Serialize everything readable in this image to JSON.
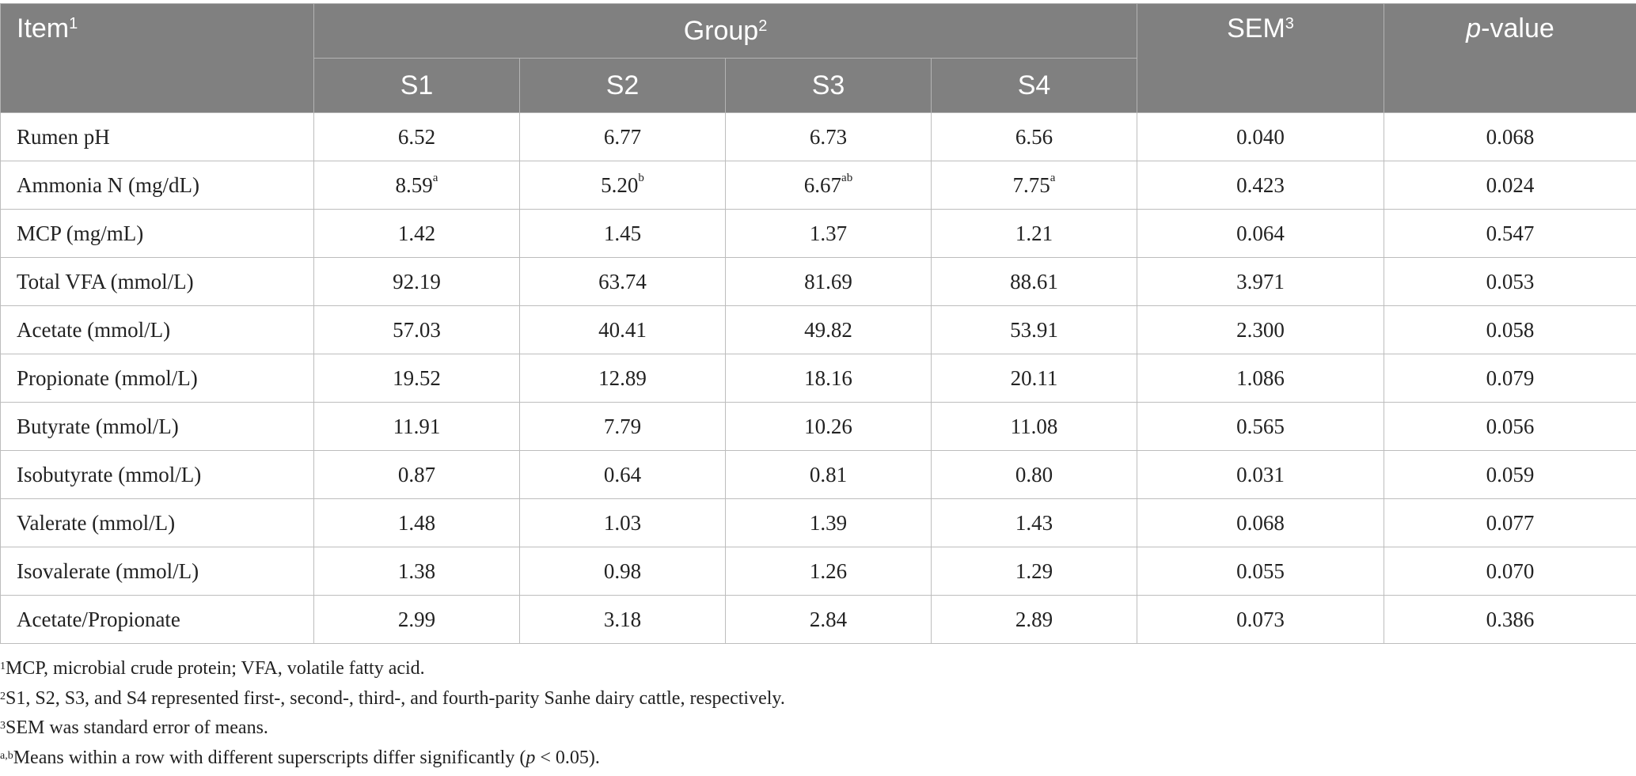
{
  "header": {
    "item": "Item",
    "item_sup": "1",
    "group": "Group",
    "group_sup": "2",
    "sem": "SEM",
    "sem_sup": "3",
    "p_italic": "p",
    "p_rest": "-value",
    "subgroups": [
      "S1",
      "S2",
      "S3",
      "S4"
    ]
  },
  "rows": [
    {
      "item": "Rumen pH",
      "s1": "6.52",
      "s1_sup": "",
      "s2": "6.77",
      "s2_sup": "",
      "s3": "6.73",
      "s3_sup": "",
      "s4": "6.56",
      "s4_sup": "",
      "sem": "0.040",
      "p": "0.068"
    },
    {
      "item": "Ammonia N (mg/dL)",
      "s1": "8.59",
      "s1_sup": "a",
      "s2": "5.20",
      "s2_sup": "b",
      "s3": "6.67",
      "s3_sup": "ab",
      "s4": "7.75",
      "s4_sup": "a",
      "sem": "0.423",
      "p": "0.024"
    },
    {
      "item": "MCP (mg/mL)",
      "s1": "1.42",
      "s1_sup": "",
      "s2": "1.45",
      "s2_sup": "",
      "s3": "1.37",
      "s3_sup": "",
      "s4": "1.21",
      "s4_sup": "",
      "sem": "0.064",
      "p": "0.547"
    },
    {
      "item": "Total VFA (mmol/L)",
      "s1": "92.19",
      "s1_sup": "",
      "s2": "63.74",
      "s2_sup": "",
      "s3": "81.69",
      "s3_sup": "",
      "s4": "88.61",
      "s4_sup": "",
      "sem": "3.971",
      "p": "0.053"
    },
    {
      "item": "Acetate (mmol/L)",
      "s1": "57.03",
      "s1_sup": "",
      "s2": "40.41",
      "s2_sup": "",
      "s3": "49.82",
      "s3_sup": "",
      "s4": "53.91",
      "s4_sup": "",
      "sem": "2.300",
      "p": "0.058"
    },
    {
      "item": "Propionate (mmol/L)",
      "s1": "19.52",
      "s1_sup": "",
      "s2": "12.89",
      "s2_sup": "",
      "s3": "18.16",
      "s3_sup": "",
      "s4": "20.11",
      "s4_sup": "",
      "sem": "1.086",
      "p": "0.079"
    },
    {
      "item": "Butyrate (mmol/L)",
      "s1": "11.91",
      "s1_sup": "",
      "s2": "7.79",
      "s2_sup": "",
      "s3": "10.26",
      "s3_sup": "",
      "s4": "11.08",
      "s4_sup": "",
      "sem": "0.565",
      "p": "0.056"
    },
    {
      "item": "Isobutyrate (mmol/L)",
      "s1": "0.87",
      "s1_sup": "",
      "s2": "0.64",
      "s2_sup": "",
      "s3": "0.81",
      "s3_sup": "",
      "s4": "0.80",
      "s4_sup": "",
      "sem": "0.031",
      "p": "0.059"
    },
    {
      "item": "Valerate (mmol/L)",
      "s1": "1.48",
      "s1_sup": "",
      "s2": "1.03",
      "s2_sup": "",
      "s3": "1.39",
      "s3_sup": "",
      "s4": "1.43",
      "s4_sup": "",
      "sem": "0.068",
      "p": "0.077"
    },
    {
      "item": "Isovalerate (mmol/L)",
      "s1": "1.38",
      "s1_sup": "",
      "s2": "0.98",
      "s2_sup": "",
      "s3": "1.26",
      "s3_sup": "",
      "s4": "1.29",
      "s4_sup": "",
      "sem": "0.055",
      "p": "0.070"
    },
    {
      "item": "Acetate/Propionate",
      "s1": "2.99",
      "s1_sup": "",
      "s2": "3.18",
      "s2_sup": "",
      "s3": "2.84",
      "s3_sup": "",
      "s4": "2.89",
      "s4_sup": "",
      "sem": "0.073",
      "p": "0.386"
    }
  ],
  "footnotes": {
    "f1_sup": "1",
    "f1": "MCP, microbial crude protein; VFA, volatile fatty acid.",
    "f2_sup": "2",
    "f2": "S1, S2, S3, and S4 represented first-, second-, third-, and fourth-parity Sanhe dairy cattle, respectively.",
    "f3_sup": "3",
    "f3": "SEM was standard error of means.",
    "f4_sup": "a,b",
    "f4_pre": "Means within a row with different superscripts differ significantly (",
    "f4_italic": "p",
    "f4_post": " < 0.05)."
  },
  "colors": {
    "header_bg": "#808080",
    "header_text": "#ffffff",
    "border": "#bdbdbd"
  }
}
